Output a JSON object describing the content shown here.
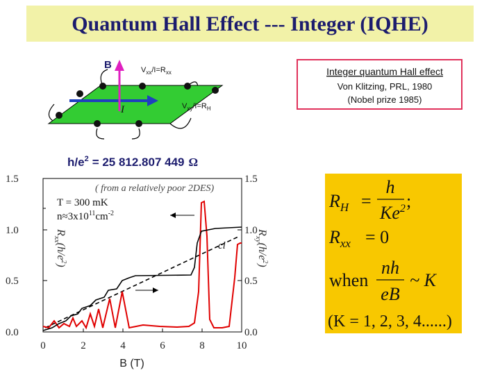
{
  "title": "Quantum Hall Effect --- Integer (IQHE)",
  "diagram": {
    "b_label": "B",
    "i_label": "I",
    "vxx": {
      "v": "V",
      "v_sub": "xx",
      "mid": "/I=R",
      "r_sub": "xx"
    },
    "vxy": {
      "v": "V",
      "v_sub": "xy",
      "mid": "/I=R",
      "r_sub": "H"
    }
  },
  "reference": {
    "heading": "Integer quantum Hall effect",
    "citation": "Von Klitzing, PRL, 1980",
    "prize": "(Nobel prize 1985)"
  },
  "constant": {
    "lhs": "h/e",
    "exp": "2",
    "rhs": "= 25 812.807 449",
    "unit": "Ω"
  },
  "plot": {
    "note": "( from a relatively poor 2DES)",
    "temperature": "T = 300 mK",
    "density": {
      "base": "n≈3x10",
      "exp": "11",
      "unit": "cm",
      "unit_exp": "-2"
    },
    "cl": "cl",
    "left_axis_label": {
      "r": "R",
      "sub": "xx",
      "unit": "(h/e",
      "exp": "2",
      "close": ")"
    },
    "right_axis_label": {
      "r": "R",
      "sub": "xy",
      "unit": "(h/e",
      "exp": "2",
      "close": ")"
    },
    "x_axis_label": "B (T)",
    "left_ticks": [
      "1.5",
      "1.0",
      "0.5",
      "0.0"
    ],
    "right_ticks": [
      "1.5",
      "1.0",
      "0.5",
      "0.0"
    ],
    "x_ticks": [
      "0",
      "2",
      "4",
      "6",
      "8",
      "10"
    ]
  },
  "formula": {
    "rh": "R",
    "rh_sub": "H",
    "eq": "=",
    "num": "h",
    "den": "Ke",
    "den_exp": "2",
    "semi": ";",
    "rxx": "R",
    "rxx_sub": "xx",
    "rxx_val": "= 0",
    "when": "when",
    "num2": "nh",
    "den2": "eB",
    "approx": "~ K",
    "k_list": "(K = 1, 2, 3, 4......)"
  }
}
